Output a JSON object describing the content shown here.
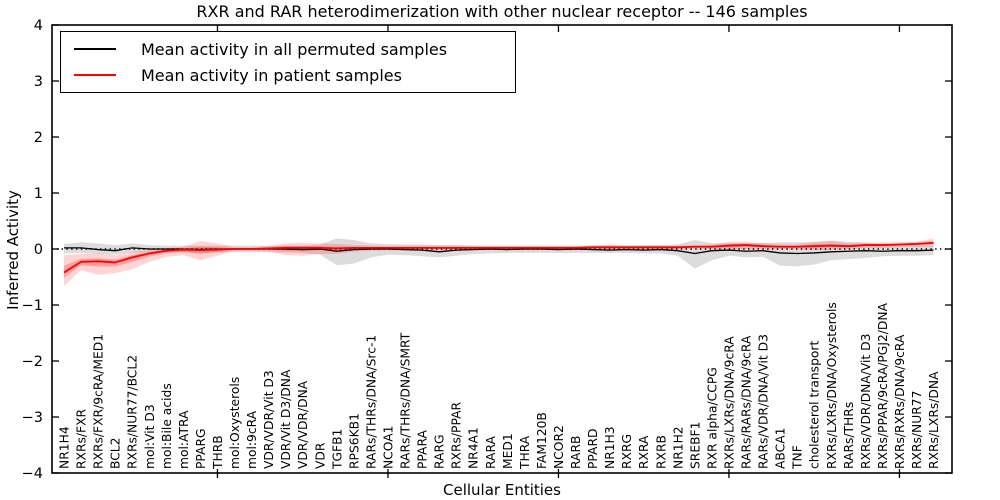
{
  "title": "RXR and RAR heterodimerization with other nuclear receptor -- 146 samples",
  "legend": {
    "items": [
      {
        "label": "Mean activity in all permuted samples",
        "color": "#000000"
      },
      {
        "label": "Mean activity in patient samples",
        "color": "#ff0000"
      }
    ]
  },
  "axes": {
    "x_label": "Cellular Entities",
    "y_label": "Inferred Activity"
  },
  "chart_data": {
    "type": "line",
    "title": "RXR and RAR heterodimerization with other nuclear receptor -- 146 samples",
    "xlabel": "Cellular Entities",
    "ylabel": "Inferred Activity",
    "ylim": [
      -4,
      4
    ],
    "y_ticks": [
      4,
      3,
      2,
      1,
      0,
      -1,
      -2,
      -3,
      -4
    ],
    "x_major_tick_indices": [
      9,
      19,
      29,
      39,
      49
    ],
    "grid": false,
    "legend_position": "upper left",
    "zero_reference_line": true,
    "categories": [
      "NR1H4",
      "RXRs/FXR",
      "RXRs/FXR/9cRA/MED1",
      "BCL2",
      "RXRs/NUR77/BCL2",
      "mol:Vit D3",
      "mol:Bile acids",
      "mol:ATRA",
      "PPARG",
      "THRB",
      "mol:Oxysterols",
      "mol:9cRA",
      "VDR/VDR/Vit D3",
      "VDR/Vit D3/DNA",
      "VDR/VDR/DNA",
      "VDR",
      "TGFB1",
      "RPS6KB1",
      "RARs/THRs/DNA/Src-1",
      "NCOA1",
      "RARs/THRs/DNA/SMRT",
      "PPARA",
      "RARG",
      "RXRs/PPAR",
      "NR4A1",
      "RARA",
      "MED1",
      "THRA",
      "FAM120B",
      "NCOR2",
      "RARB",
      "PPARD",
      "NR1H3",
      "RXRG",
      "RXRA",
      "RXRB",
      "NR1H2",
      "SREBF1",
      "RXR alpha/CCPG",
      "RXRs/LXRs/DNA/9cRA",
      "RARs/RARs/DNA/9cRA",
      "RARs/VDR/DNA/Vit D3",
      "ABCA1",
      "TNF",
      "cholesterol transport",
      "RXRs/LXRs/DNA/Oxysterols",
      "RARs/THRs",
      "RXRs/VDR/DNA/Vit D3",
      "RXRs/PPAR/9cRA/PGJ2/DNA",
      "RXRs/RXRs/DNA/9cRA",
      "RXRs/NUR77",
      "RXRs/LXRs/DNA"
    ],
    "series": [
      {
        "name": "Mean activity in all permuted samples",
        "color": "#000000",
        "band_color": "#808080",
        "values": [
          0.02,
          0.02,
          -0.01,
          -0.03,
          0.02,
          0,
          0,
          0,
          -0.01,
          0,
          0,
          0,
          0,
          0,
          -0.01,
          0,
          -0.04,
          -0.01,
          0,
          0,
          -0.01,
          -0.02,
          -0.05,
          -0.02,
          -0.01,
          0,
          -0.01,
          0,
          0,
          -0.01,
          0,
          -0.01,
          -0.02,
          -0.01,
          -0.02,
          -0.01,
          -0.03,
          -0.08,
          -0.03,
          -0.02,
          -0.04,
          -0.03,
          -0.07,
          -0.08,
          -0.07,
          -0.05,
          -0.04,
          -0.03,
          -0.04,
          -0.03,
          -0.03,
          -0.02
        ],
        "band_upper": [
          0.09,
          0.12,
          0.1,
          0.07,
          0.1,
          0.07,
          0.06,
          0.06,
          0.06,
          0.06,
          0.06,
          0.06,
          0.06,
          0.06,
          0.06,
          0.08,
          0.19,
          0.16,
          0.1,
          0.09,
          0.08,
          0.08,
          0.07,
          0.07,
          0.07,
          0.06,
          0.06,
          0.06,
          0.06,
          0.06,
          0.06,
          0.06,
          0.06,
          0.06,
          0.07,
          0.07,
          0.08,
          0.16,
          0.1,
          0.1,
          0.1,
          0.11,
          0.12,
          0.12,
          0.12,
          0.15,
          0.13,
          0.12,
          0.08,
          0.07,
          0.07,
          0.06
        ],
        "band_lower": [
          -0.08,
          -0.07,
          -0.09,
          -0.1,
          -0.06,
          -0.07,
          -0.06,
          -0.06,
          -0.07,
          -0.06,
          -0.06,
          -0.06,
          -0.06,
          -0.06,
          -0.07,
          -0.1,
          -0.29,
          -0.26,
          -0.15,
          -0.1,
          -0.11,
          -0.13,
          -0.15,
          -0.12,
          -0.09,
          -0.08,
          -0.07,
          -0.07,
          -0.07,
          -0.07,
          -0.07,
          -0.07,
          -0.07,
          -0.07,
          -0.08,
          -0.08,
          -0.12,
          -0.35,
          -0.2,
          -0.12,
          -0.15,
          -0.14,
          -0.3,
          -0.31,
          -0.28,
          -0.2,
          -0.18,
          -0.16,
          -0.13,
          -0.12,
          -0.12,
          -0.11
        ]
      },
      {
        "name": "Mean activity in patient samples",
        "color": "#ff0000",
        "band_color": "#ff0000",
        "values": [
          -0.42,
          -0.23,
          -0.22,
          -0.24,
          -0.15,
          -0.08,
          -0.03,
          -0.01,
          -0.02,
          -0.01,
          0,
          0,
          0.01,
          0.02,
          0.02,
          0.02,
          0.01,
          0.02,
          0.02,
          0.02,
          0.02,
          0.02,
          0.02,
          0.02,
          0.02,
          0.02,
          0.02,
          0.02,
          0.02,
          0.02,
          0.02,
          0.03,
          0.03,
          0.03,
          0.03,
          0.03,
          0.03,
          0.04,
          0.04,
          0.06,
          0.07,
          0.05,
          0.04,
          0.04,
          0.05,
          0.06,
          0.05,
          0.07,
          0.07,
          0.08,
          0.09,
          0.11
        ],
        "band_upper": [
          -0.11,
          -0.09,
          -0.08,
          -0.11,
          -0.05,
          -0.02,
          0.01,
          0.04,
          0.14,
          0.1,
          0.03,
          0.03,
          0.05,
          0.1,
          0.11,
          0.1,
          0.09,
          0.07,
          0.06,
          0.05,
          0.06,
          0.06,
          0.06,
          0.06,
          0.05,
          0.05,
          0.05,
          0.05,
          0.05,
          0.05,
          0.05,
          0.06,
          0.08,
          0.06,
          0.06,
          0.06,
          0.06,
          0.07,
          0.08,
          0.13,
          0.13,
          0.1,
          0.08,
          0.08,
          0.13,
          0.14,
          0.1,
          0.11,
          0.12,
          0.12,
          0.13,
          0.19
        ],
        "band_lower": [
          -0.66,
          -0.38,
          -0.46,
          -0.43,
          -0.36,
          -0.23,
          -0.14,
          -0.11,
          -0.2,
          -0.12,
          -0.03,
          -0.03,
          -0.04,
          -0.11,
          -0.12,
          -0.09,
          -0.09,
          -0.05,
          -0.03,
          -0.02,
          -0.03,
          -0.03,
          -0.03,
          -0.03,
          -0.02,
          -0.02,
          -0.02,
          -0.02,
          -0.02,
          -0.02,
          -0.02,
          -0.01,
          -0.01,
          0,
          0,
          0,
          0,
          0.01,
          0,
          -0.02,
          0,
          0,
          0,
          0,
          -0.02,
          -0.01,
          0,
          0.02,
          0.02,
          0.03,
          0.04,
          0.04
        ]
      }
    ]
  }
}
